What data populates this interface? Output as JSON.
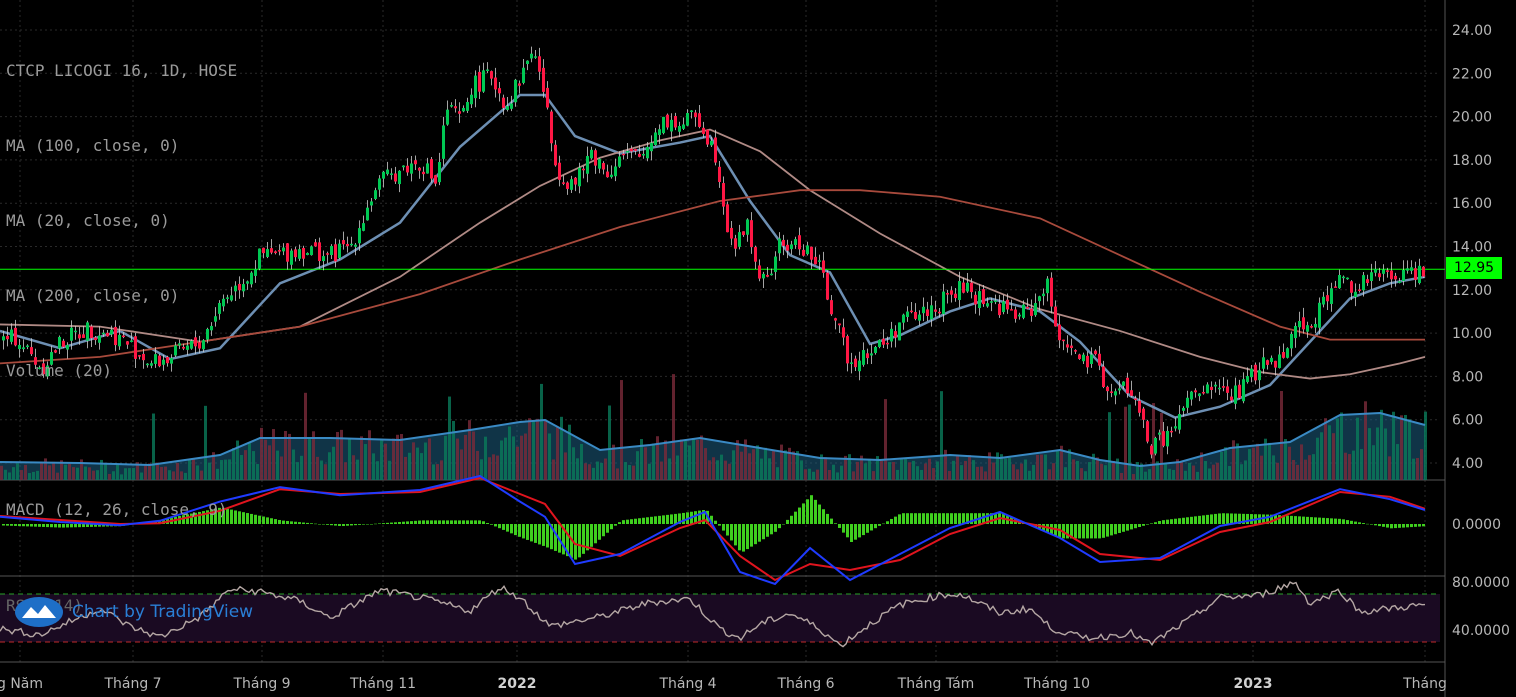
{
  "legend": {
    "title": "CTCP LICOGI 16, 1D, HOSE",
    "ma100": "MA (100, close, 0)",
    "ma20": "MA (20, close, 0)",
    "ma200": "MA (200, close, 0)",
    "volume": "Volume (20)",
    "macd": "MACD (12, 26, close, 9)",
    "rsi": "RSI (14)"
  },
  "watermark": "Chart by TradingView",
  "last_price": "12.95",
  "colors": {
    "up": "#00c853",
    "down": "#ff1744",
    "ma20": "#6d8fb3",
    "ma100": "#b08a85",
    "ma200": "#a84a3c",
    "macd": "#1f3bff",
    "signal": "#e0141e",
    "hist": "#3fcf1e",
    "rsi": "#b5a7a4",
    "price_line": "#00ff00"
  },
  "chart_data": [
    {
      "type": "candlestick",
      "title": "CTCP LICOGI 16, 1D, HOSE",
      "ylim": [
        3.2,
        25.0
      ],
      "y_ticks": [
        "24.00",
        "22.00",
        "20.00",
        "18.00",
        "16.00",
        "14.00",
        "12.00",
        "10.00",
        "8.00",
        "6.00",
        "4.00"
      ],
      "x_ticks": [
        "g Năm",
        "Tháng 7",
        "Tháng 9",
        "Tháng 11",
        "2022",
        "Tháng 4",
        "Tháng 6",
        "Tháng Tám",
        "Tháng 10",
        "2023",
        "Tháng"
      ],
      "last_price": 12.95,
      "close_path": [
        [
          0,
          9.6
        ],
        [
          15,
          9.8
        ],
        [
          40,
          8.4
        ],
        [
          60,
          9.6
        ],
        [
          85,
          10.2
        ],
        [
          110,
          10.0
        ],
        [
          130,
          9.4
        ],
        [
          150,
          8.6
        ],
        [
          170,
          8.9
        ],
        [
          200,
          9.6
        ],
        [
          220,
          11.5
        ],
        [
          245,
          12.6
        ],
        [
          260,
          13.6
        ],
        [
          275,
          13.6
        ],
        [
          300,
          13.9
        ],
        [
          330,
          13.6
        ],
        [
          350,
          14.1
        ],
        [
          375,
          16.8
        ],
        [
          400,
          17.6
        ],
        [
          420,
          17.9
        ],
        [
          435,
          16.9
        ],
        [
          445,
          20.4
        ],
        [
          460,
          19.8
        ],
        [
          470,
          21.4
        ],
        [
          490,
          21.9
        ],
        [
          505,
          20.5
        ],
        [
          520,
          21.9
        ],
        [
          530,
          23.1
        ],
        [
          540,
          21.9
        ],
        [
          550,
          18.8
        ],
        [
          560,
          17.2
        ],
        [
          575,
          16.9
        ],
        [
          590,
          18.4
        ],
        [
          605,
          17.4
        ],
        [
          620,
          18.2
        ],
        [
          640,
          18.1
        ],
        [
          660,
          19.9
        ],
        [
          680,
          19.6
        ],
        [
          695,
          20.1
        ],
        [
          705,
          19.2
        ],
        [
          715,
          18.2
        ],
        [
          725,
          15.2
        ],
        [
          735,
          13.9
        ],
        [
          745,
          15.2
        ],
        [
          755,
          13.1
        ],
        [
          765,
          12.1
        ],
        [
          775,
          13.9
        ],
        [
          790,
          14.1
        ],
        [
          805,
          13.9
        ],
        [
          820,
          12.8
        ],
        [
          830,
          11.2
        ],
        [
          840,
          9.6
        ],
        [
          850,
          8.6
        ],
        [
          860,
          9.2
        ],
        [
          870,
          9.2
        ],
        [
          885,
          9.6
        ],
        [
          900,
          10.6
        ],
        [
          920,
          10.9
        ],
        [
          940,
          11.4
        ],
        [
          960,
          12.1
        ],
        [
          980,
          11.6
        ],
        [
          1000,
          11.2
        ],
        [
          1015,
          10.8
        ],
        [
          1030,
          11.1
        ],
        [
          1045,
          12.3
        ],
        [
          1055,
          10.2
        ],
        [
          1065,
          9.6
        ],
        [
          1080,
          8.6
        ],
        [
          1095,
          8.6
        ],
        [
          1110,
          7.1
        ],
        [
          1125,
          7.6
        ],
        [
          1140,
          6.1
        ],
        [
          1150,
          4.6
        ],
        [
          1160,
          5.1
        ],
        [
          1175,
          5.6
        ],
        [
          1185,
          6.9
        ],
        [
          1200,
          7.1
        ],
        [
          1215,
          7.6
        ],
        [
          1230,
          7.1
        ],
        [
          1245,
          7.6
        ],
        [
          1260,
          8.6
        ],
        [
          1275,
          8.6
        ],
        [
          1290,
          10.1
        ],
        [
          1310,
          10.6
        ],
        [
          1325,
          11.6
        ],
        [
          1340,
          12.6
        ],
        [
          1355,
          12.1
        ],
        [
          1370,
          12.6
        ],
        [
          1390,
          12.6
        ],
        [
          1405,
          12.8
        ],
        [
          1425,
          12.95
        ]
      ],
      "series": [
        {
          "name": "MA (20, close, 0)",
          "values": [
            [
              0,
              10.1
            ],
            [
              60,
              9.3
            ],
            [
              120,
              10.1
            ],
            [
              170,
              8.8
            ],
            [
              220,
              9.3
            ],
            [
              280,
              12.3
            ],
            [
              340,
              13.4
            ],
            [
              400,
              15.1
            ],
            [
              460,
              18.6
            ],
            [
              520,
              21.0
            ],
            [
              545,
              21.0
            ],
            [
              575,
              19.1
            ],
            [
              620,
              18.3
            ],
            [
              680,
              18.8
            ],
            [
              710,
              19.1
            ],
            [
              750,
              16.1
            ],
            [
              790,
              13.6
            ],
            [
              830,
              12.8
            ],
            [
              870,
              9.5
            ],
            [
              900,
              9.9
            ],
            [
              950,
              11.0
            ],
            [
              990,
              11.6
            ],
            [
              1040,
              11.0
            ],
            [
              1080,
              9.6
            ],
            [
              1130,
              7.1
            ],
            [
              1175,
              6.1
            ],
            [
              1220,
              6.6
            ],
            [
              1270,
              7.6
            ],
            [
              1310,
              9.6
            ],
            [
              1350,
              11.6
            ],
            [
              1390,
              12.3
            ],
            [
              1425,
              12.6
            ]
          ]
        },
        {
          "name": "MA (100, close, 0)",
          "values": [
            [
              0,
              10.4
            ],
            [
              100,
              10.3
            ],
            [
              200,
              9.6
            ],
            [
              300,
              10.3
            ],
            [
              400,
              12.6
            ],
            [
              480,
              15.1
            ],
            [
              540,
              16.8
            ],
            [
              600,
              18.1
            ],
            [
              660,
              18.9
            ],
            [
              710,
              19.4
            ],
            [
              760,
              18.4
            ],
            [
              810,
              16.6
            ],
            [
              880,
              14.6
            ],
            [
              960,
              12.6
            ],
            [
              1040,
              11.1
            ],
            [
              1120,
              10.1
            ],
            [
              1200,
              8.9
            ],
            [
              1260,
              8.2
            ],
            [
              1310,
              7.9
            ],
            [
              1350,
              8.1
            ],
            [
              1400,
              8.6
            ],
            [
              1425,
              8.9
            ]
          ]
        },
        {
          "name": "MA (200, close, 0)",
          "values": [
            [
              0,
              8.6
            ],
            [
              100,
              8.9
            ],
            [
              200,
              9.6
            ],
            [
              300,
              10.3
            ],
            [
              420,
              11.8
            ],
            [
              520,
              13.4
            ],
            [
              620,
              14.9
            ],
            [
              720,
              16.1
            ],
            [
              800,
              16.6
            ],
            [
              860,
              16.6
            ],
            [
              940,
              16.3
            ],
            [
              1040,
              15.3
            ],
            [
              1120,
              13.6
            ],
            [
              1200,
              11.9
            ],
            [
              1280,
              10.3
            ],
            [
              1330,
              9.7
            ],
            [
              1425,
              9.7
            ]
          ]
        }
      ]
    },
    {
      "type": "bar",
      "title": "Volume (20)",
      "volume_ma_path": [
        [
          0,
          462
        ],
        [
          80,
          463
        ],
        [
          150,
          465
        ],
        [
          220,
          455
        ],
        [
          260,
          438
        ],
        [
          330,
          438
        ],
        [
          400,
          440
        ],
        [
          470,
          430
        ],
        [
          520,
          422
        ],
        [
          545,
          420
        ],
        [
          600,
          450
        ],
        [
          650,
          445
        ],
        [
          700,
          438
        ],
        [
          760,
          448
        ],
        [
          820,
          458
        ],
        [
          880,
          460
        ],
        [
          950,
          455
        ],
        [
          1000,
          458
        ],
        [
          1060,
          450
        ],
        [
          1100,
          460
        ],
        [
          1140,
          466
        ],
        [
          1180,
          462
        ],
        [
          1230,
          448
        ],
        [
          1290,
          442
        ],
        [
          1340,
          415
        ],
        [
          1380,
          413
        ],
        [
          1425,
          425
        ]
      ]
    },
    {
      "type": "line",
      "title": "MACD (12, 26, close, 9)",
      "y_ticks": [
        "0.0000"
      ],
      "series": [
        {
          "name": "MACD",
          "values": [
            [
              0,
              0.18
            ],
            [
              60,
              0.05
            ],
            [
              120,
              -0.03
            ],
            [
              160,
              0.08
            ],
            [
              220,
              0.56
            ],
            [
              280,
              0.92
            ],
            [
              340,
              0.72
            ],
            [
              420,
              0.85
            ],
            [
              480,
              1.2
            ],
            [
              520,
              0.56
            ],
            [
              545,
              0.18
            ],
            [
              575,
              -1.0
            ],
            [
              620,
              -0.75
            ],
            [
              680,
              0.05
            ],
            [
              705,
              0.3
            ],
            [
              740,
              -1.2
            ],
            [
              775,
              -1.5
            ],
            [
              810,
              -0.6
            ],
            [
              850,
              -1.4
            ],
            [
              900,
              -0.75
            ],
            [
              950,
              -0.1
            ],
            [
              1000,
              0.3
            ],
            [
              1060,
              -0.35
            ],
            [
              1100,
              -0.95
            ],
            [
              1160,
              -0.85
            ],
            [
              1220,
              -0.05
            ],
            [
              1270,
              0.18
            ],
            [
              1340,
              0.87
            ],
            [
              1390,
              0.62
            ],
            [
              1425,
              0.35
            ]
          ]
        },
        {
          "name": "Signal",
          "values": [
            [
              0,
              0.2
            ],
            [
              60,
              0.1
            ],
            [
              120,
              0.0
            ],
            [
              160,
              0.02
            ],
            [
              220,
              0.33
            ],
            [
              280,
              0.87
            ],
            [
              340,
              0.75
            ],
            [
              420,
              0.8
            ],
            [
              480,
              1.15
            ],
            [
              520,
              0.75
            ],
            [
              545,
              0.5
            ],
            [
              575,
              -0.5
            ],
            [
              620,
              -0.8
            ],
            [
              680,
              -0.1
            ],
            [
              705,
              0.1
            ],
            [
              740,
              -0.8
            ],
            [
              775,
              -1.4
            ],
            [
              810,
              -1.0
            ],
            [
              850,
              -1.15
            ],
            [
              900,
              -0.9
            ],
            [
              950,
              -0.25
            ],
            [
              1000,
              0.15
            ],
            [
              1060,
              -0.15
            ],
            [
              1100,
              -0.75
            ],
            [
              1160,
              -0.9
            ],
            [
              1220,
              -0.2
            ],
            [
              1270,
              0.05
            ],
            [
              1340,
              0.8
            ],
            [
              1390,
              0.68
            ],
            [
              1425,
              0.38
            ]
          ]
        }
      ]
    },
    {
      "type": "line",
      "title": "RSI (14)",
      "y_ticks": [
        "80.0000",
        "40.0000"
      ],
      "series": [
        {
          "name": "RSI (14)",
          "values": [
            [
              0,
              41
            ],
            [
              40,
              36
            ],
            [
              70,
              47
            ],
            [
              100,
              58
            ],
            [
              130,
              43
            ],
            [
              160,
              34
            ],
            [
              200,
              51
            ],
            [
              230,
              74
            ],
            [
              260,
              72
            ],
            [
              300,
              64
            ],
            [
              330,
              50
            ],
            [
              380,
              73
            ],
            [
              420,
              67
            ],
            [
              470,
              56
            ],
            [
              500,
              76
            ],
            [
              520,
              67
            ],
            [
              550,
              43
            ],
            [
              600,
              51
            ],
            [
              650,
              63
            ],
            [
              690,
              66
            ],
            [
              720,
              41
            ],
            [
              740,
              33
            ],
            [
              760,
              45
            ],
            [
              790,
              54
            ],
            [
              820,
              41
            ],
            [
              840,
              27
            ],
            [
              870,
              45
            ],
            [
              900,
              61
            ],
            [
              940,
              69
            ],
            [
              960,
              70
            ],
            [
              1000,
              54
            ],
            [
              1030,
              58
            ],
            [
              1050,
              42
            ],
            [
              1080,
              34
            ],
            [
              1100,
              34
            ],
            [
              1130,
              38
            ],
            [
              1150,
              28
            ],
            [
              1190,
              49
            ],
            [
              1220,
              67
            ],
            [
              1260,
              69
            ],
            [
              1295,
              80
            ],
            [
              1310,
              62
            ],
            [
              1340,
              73
            ],
            [
              1360,
              55
            ],
            [
              1380,
              57
            ],
            [
              1425,
              61
            ]
          ]
        }
      ]
    }
  ]
}
